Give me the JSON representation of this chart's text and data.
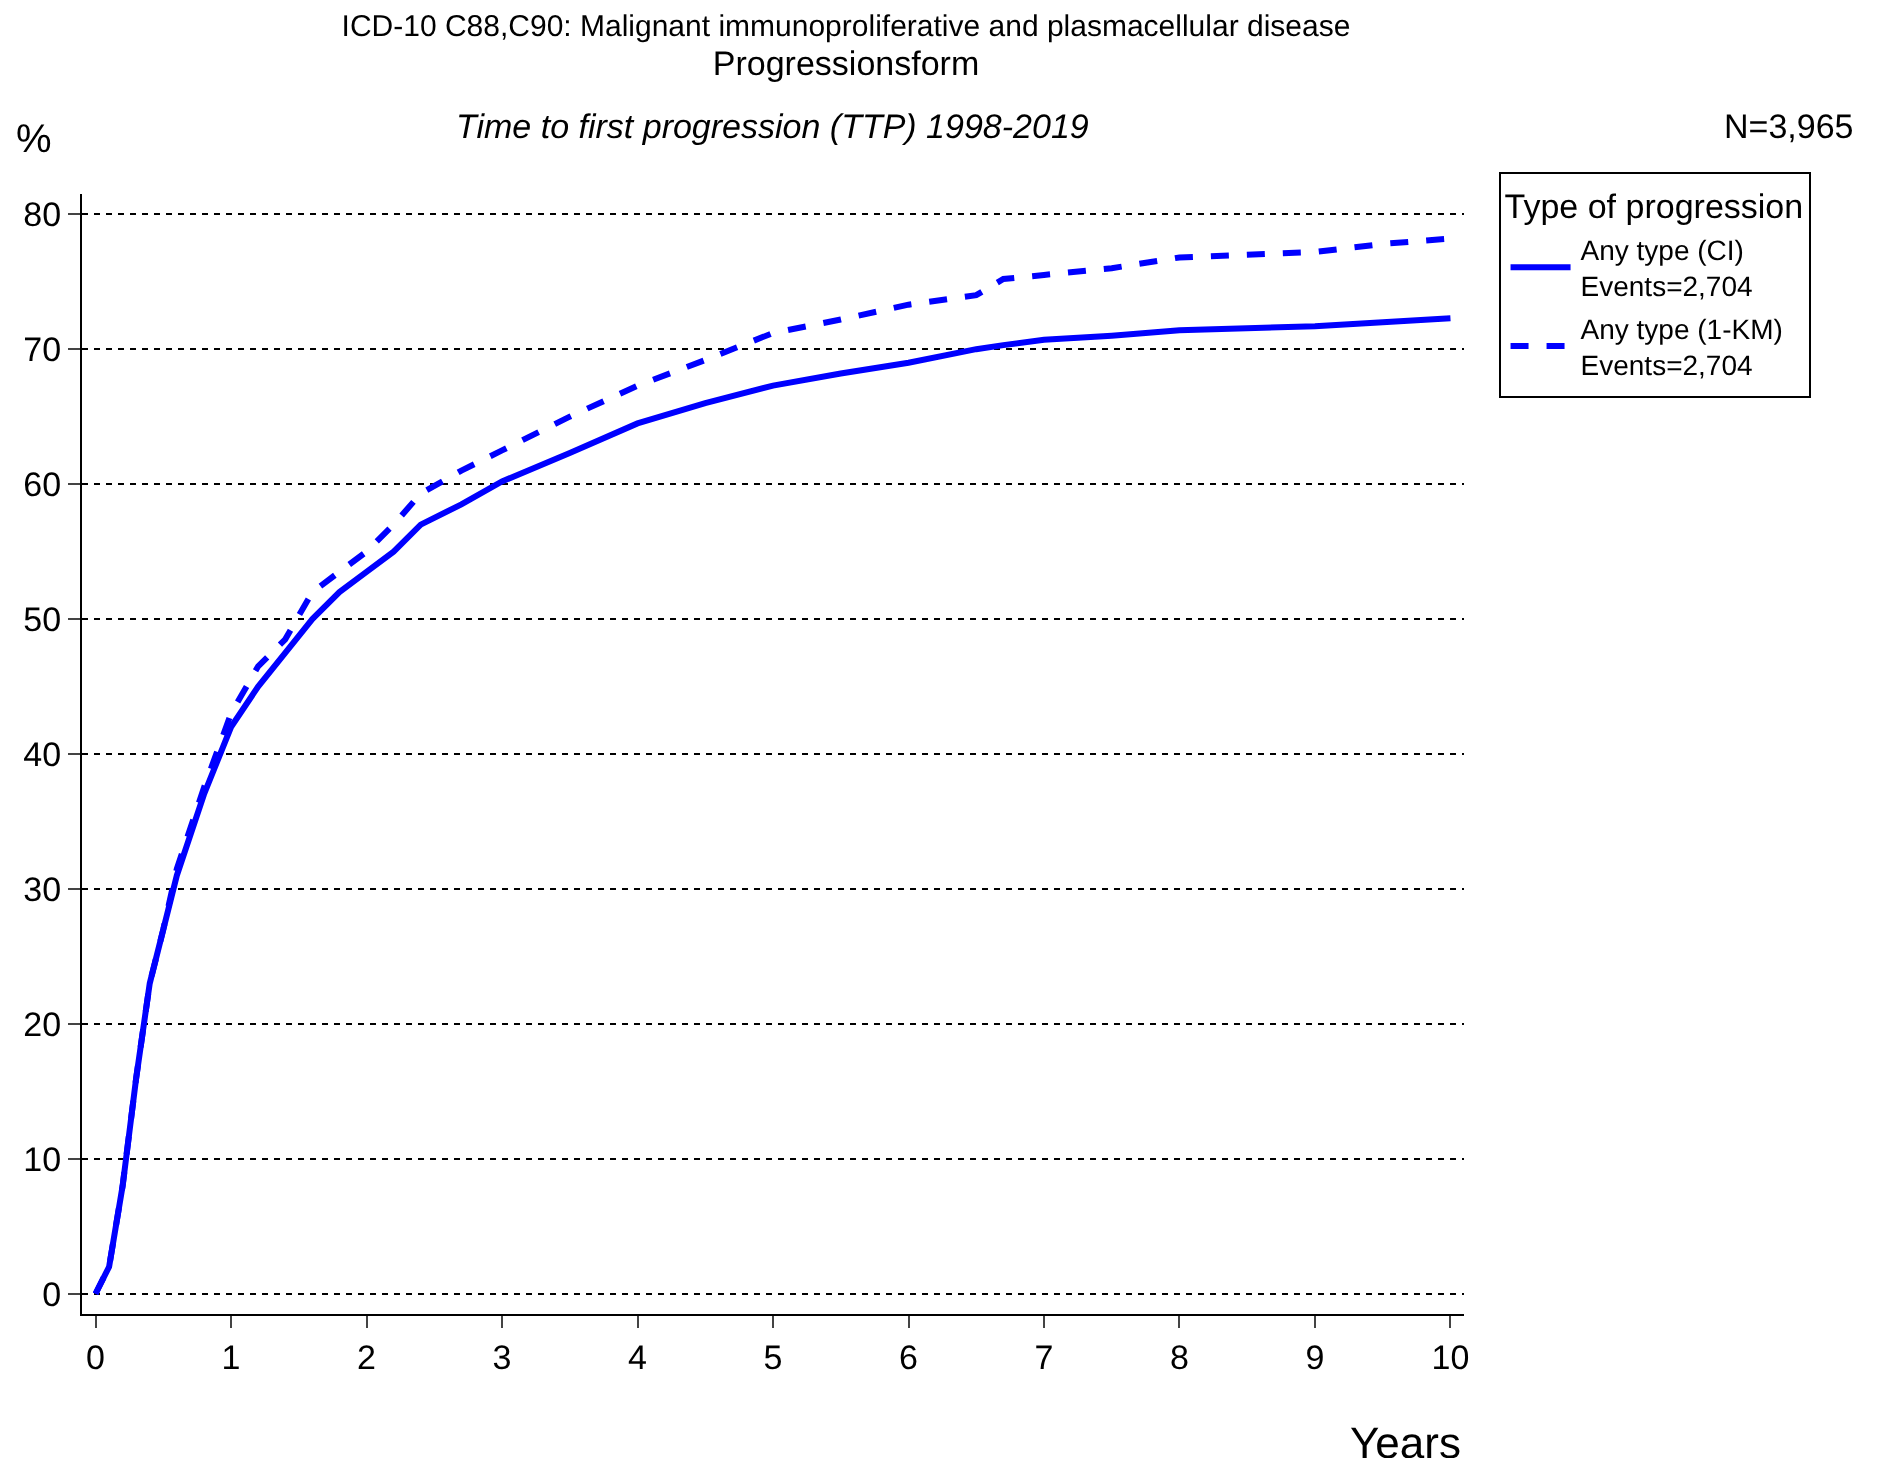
{
  "chart_data": {
    "type": "line",
    "title": "ICD-10 C88,C90: Malignant immunoproliferative and plasmacellular disease",
    "subtitle": "Progressionsform",
    "annotations": [
      "Time to first progression (TTP) 1998-2019",
      "N=3,965"
    ],
    "xlabel": "Years",
    "ylabel": "%",
    "legend_title": "Type of progression",
    "x": [
      0,
      0.1,
      0.2,
      0.3,
      0.4,
      0.5,
      0.6,
      0.8,
      1.0,
      1.2,
      1.4,
      1.6,
      1.8,
      2.0,
      2.2,
      2.4,
      2.7,
      3.0,
      3.5,
      4.0,
      4.5,
      5.0,
      5.5,
      6.0,
      6.5,
      6.7,
      7.0,
      7.5,
      8.0,
      9.0,
      9.5,
      10
    ],
    "series": [
      {
        "name": "Any type (CI)\nEvents=2,704",
        "color": "#0000ff",
        "line_style": "solid",
        "values": [
          0,
          2,
          8,
          16,
          23,
          27,
          31,
          37,
          42,
          45,
          47.5,
          50,
          52,
          53.5,
          55,
          57,
          58.5,
          60.2,
          62.3,
          64.5,
          66,
          67.3,
          68.2,
          69,
          70,
          70.3,
          70.7,
          71,
          71.4,
          71.7,
          72,
          72.3
        ]
      },
      {
        "name": "Any type (1-KM)\nEvents=2,704",
        "color": "#0000ff",
        "line_style": "dashed",
        "values": [
          0,
          2,
          8,
          16,
          23,
          27,
          31.5,
          37.5,
          43,
          46.5,
          48.5,
          52,
          53.5,
          55,
          57,
          59.3,
          61,
          62.5,
          65,
          67.3,
          69.2,
          71.2,
          72.2,
          73.3,
          74,
          75.2,
          75.5,
          76,
          76.8,
          77.2,
          77.8,
          78.2
        ]
      }
    ],
    "xlim": [
      -0.1,
      10.1
    ],
    "ylim": [
      -1.5,
      81.5
    ],
    "xticks": [
      0,
      1,
      2,
      3,
      4,
      5,
      6,
      7,
      8,
      9,
      10
    ],
    "yticks": [
      0,
      10,
      20,
      30,
      40,
      50,
      60,
      70,
      80
    ],
    "grid": "y",
    "legend": "top right",
    "marker": "none"
  }
}
